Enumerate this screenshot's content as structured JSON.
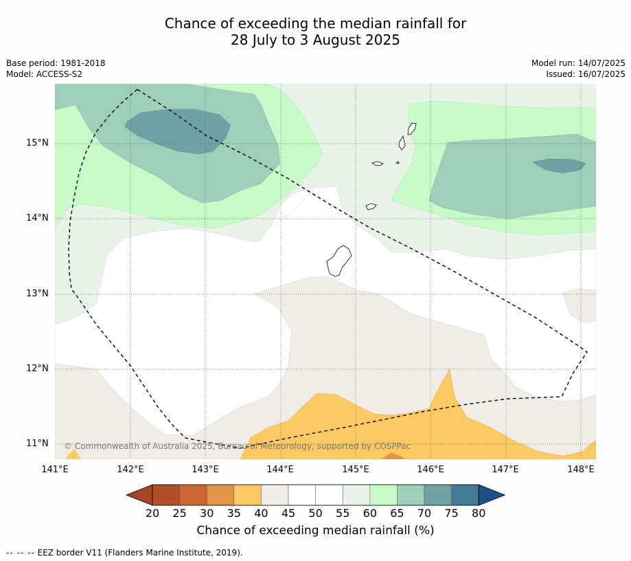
{
  "title_line1": "Chance of exceeding the median rainfall for",
  "title_line2": "28 July to 3 August 2025",
  "base_period": "Base period: 1981-2018",
  "model": "Model: ACCESS-S2",
  "model_run": "Model run: 14/07/2025",
  "issued": "Issued: 16/07/2025",
  "copyright": "© Commonwealth of Australia 2025, Bureau of Meteorology, supported by COSPPac",
  "lat_labels": [
    "15°N",
    "14°N",
    "13°N",
    "12°N",
    "11°N"
  ],
  "lon_labels": [
    "141°E",
    "142°E",
    "143°E",
    "144°E",
    "145°E",
    "146°E",
    "147°E",
    "148°E"
  ],
  "colorbar": {
    "ticks": [
      "20",
      "25",
      "30",
      "35",
      "40",
      "45",
      "50",
      "55",
      "60",
      "65",
      "70",
      "75",
      "80"
    ],
    "colors": [
      "#b24f2a",
      "#cd6633",
      "#e09548",
      "#fdc962",
      "#f1ece5",
      "#ffffff",
      "#ffffff",
      "#e9f4e8",
      "#c8fac9",
      "#9dcfb9",
      "#6ea3a5",
      "#427c96"
    ],
    "low_arrow_color": "#a44523",
    "high_arrow_color": "#1b4f88",
    "label": "Chance of exceeding median rainfall (%)"
  },
  "legend_note": {
    "dash": "-- -- --",
    "text": "EEZ border V11 (Flanders Marine Institute, 2019)."
  }
}
